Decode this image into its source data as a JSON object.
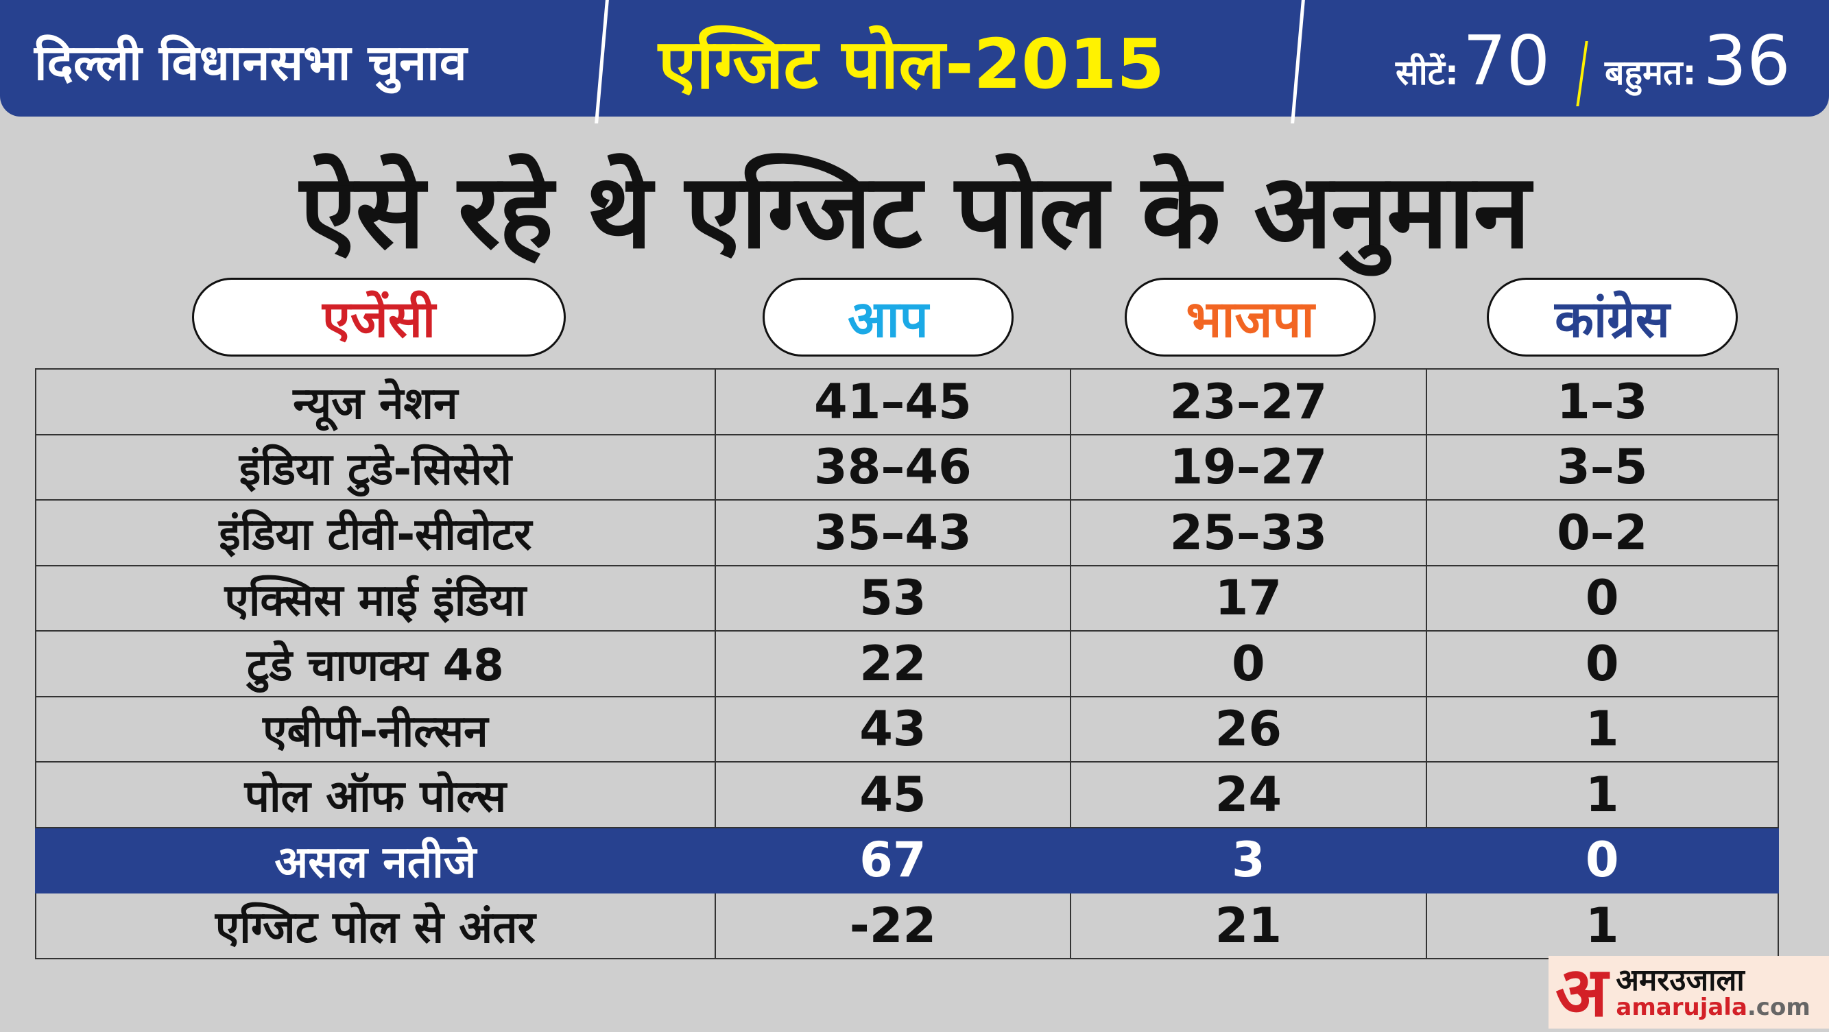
{
  "header": {
    "left_title": "दिल्ली विधानसभा चुनाव",
    "center_title": "एग्जिट पोल-2015",
    "seats_label": "सीटें:",
    "seats_value": "70",
    "majority_label": "बहुमत:",
    "majority_value": "36"
  },
  "title": "ऐसे रहे थे एग्जिट पोल के अनुमान",
  "columns": [
    {
      "label": "एजेंसी",
      "color": "#d32027"
    },
    {
      "label": "आप",
      "color": "#1ba9e6"
    },
    {
      "label": "भाजपा",
      "color": "#f26522"
    },
    {
      "label": "कांग्रेस",
      "color": "#27418f"
    }
  ],
  "rows": [
    [
      "न्यूज नेशन",
      "41–45",
      "23–27",
      "1–3"
    ],
    [
      "इंडिया टुडे-सिसेरो",
      "38–46",
      "19–27",
      "3–5"
    ],
    [
      "इंडिया टीवी-सीवोटर",
      "35–43",
      "25–33",
      "0–2"
    ],
    [
      "एक्सिस माई इंडिया",
      "53",
      "17",
      "0"
    ],
    [
      "टुडे चाणक्य 48",
      "22",
      "0",
      "0"
    ],
    [
      "एबीपी-नील्सन",
      "43",
      "26",
      "1"
    ],
    [
      "पोल ऑफ पोल्स",
      "45",
      "24",
      "1"
    ],
    [
      "असल नतीजे",
      "67",
      "3",
      "0"
    ],
    [
      "एग्जिट पोल से अंतर",
      "-22",
      "21",
      "1"
    ]
  ],
  "highlight_color": "#27418f",
  "logo": {
    "mark": "अ",
    "hindi": "अमरउजाला",
    "domain_main": "amarujala",
    "domain_tld": ".com"
  }
}
